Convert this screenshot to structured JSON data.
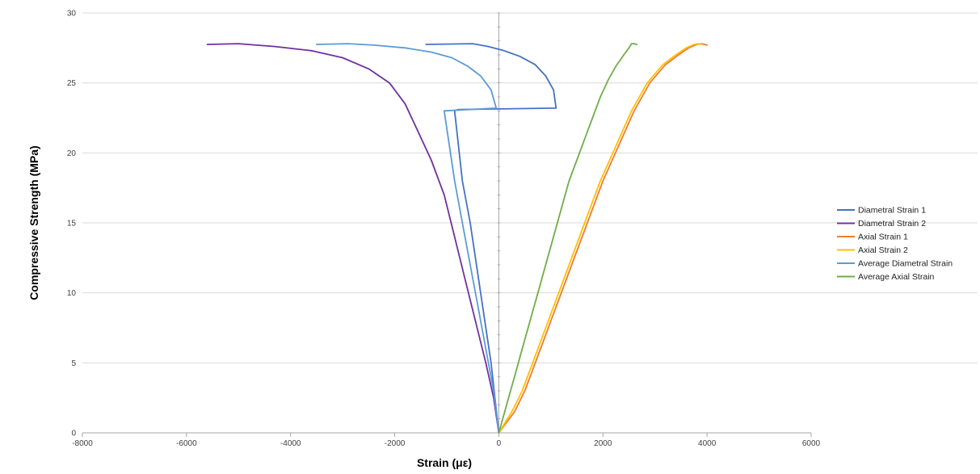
{
  "chart_data": {
    "type": "line",
    "title": "",
    "xlabel": "Strain (με)",
    "ylabel": "Compressive Strength (MPa)",
    "xlim": [
      -8000,
      6000
    ],
    "ylim": [
      0,
      30
    ],
    "x_ticks": [
      -8000,
      -6000,
      -4000,
      -2000,
      0,
      2000,
      4000,
      6000
    ],
    "y_ticks": [
      0,
      5,
      10,
      15,
      20,
      25,
      30
    ],
    "grid": "horizontal",
    "legend_position": "right",
    "series": [
      {
        "name": "Diametral Strain 1",
        "color": "#4472c4",
        "x": [
          0,
          -150,
          -350,
          -550,
          -700,
          -850,
          -780,
          1100,
          1050,
          900,
          700,
          400,
          100,
          -200,
          -500,
          -1400
        ],
        "y": [
          0,
          5,
          10,
          15,
          18,
          23,
          23.1,
          23.2,
          24.5,
          25.5,
          26.3,
          26.9,
          27.3,
          27.6,
          27.8,
          27.75
        ]
      },
      {
        "name": "Diametral Strain 2",
        "color": "#7030a0",
        "x": [
          0,
          -100,
          -250,
          -450,
          -650,
          -850,
          -1050,
          -1300,
          -1550,
          -1800,
          -2100,
          -2500,
          -3000,
          -3600,
          -4300,
          -5000,
          -5600
        ],
        "y": [
          0,
          2.5,
          5,
          8,
          11,
          14,
          17,
          19.5,
          21.5,
          23.5,
          25.0,
          26.0,
          26.8,
          27.3,
          27.6,
          27.8,
          27.75
        ]
      },
      {
        "name": "Axial Strain 1",
        "color": "#ed7d31",
        "x": [
          0,
          300,
          500,
          800,
          1100,
          1400,
          1700,
          2000,
          2300,
          2600,
          2900,
          3200,
          3450,
          3650,
          3800,
          3900,
          3950,
          4000
        ],
        "y": [
          0,
          1.5,
          3,
          6,
          9,
          12,
          15,
          18,
          20.5,
          23,
          25,
          26.3,
          27,
          27.5,
          27.75,
          27.8,
          27.75,
          27.7
        ]
      },
      {
        "name": "Axial Strain 2",
        "color": "#ffc000",
        "x": [
          0,
          250,
          450,
          750,
          1050,
          1350,
          1650,
          1950,
          2250,
          2550,
          2850,
          3150,
          3400,
          3600,
          3750,
          3850,
          3900
        ],
        "y": [
          0,
          1.5,
          3,
          6,
          9,
          12,
          15,
          18,
          20.5,
          23,
          25,
          26.3,
          27,
          27.5,
          27.75,
          27.8,
          27.75
        ]
      },
      {
        "name": "Average Diametral Strain",
        "color": "#5b9bd5",
        "x": [
          0,
          -100,
          -250,
          -400,
          -550,
          -700,
          -850,
          -1050,
          -50,
          -150,
          -350,
          -600,
          -900,
          -1300,
          -1800,
          -2400,
          -2900,
          -3500
        ],
        "y": [
          0,
          3,
          6,
          9,
          12,
          15,
          18,
          23,
          23.2,
          24.5,
          25.5,
          26.2,
          26.8,
          27.2,
          27.5,
          27.7,
          27.8,
          27.75
        ]
      },
      {
        "name": "Average Axial Strain",
        "color": "#70ad47",
        "x": [
          0,
          150,
          300,
          450,
          600,
          750,
          900,
          1050,
          1200,
          1350,
          1500,
          1650,
          1800,
          1950,
          2100,
          2250,
          2400,
          2500,
          2550,
          2600,
          2650
        ],
        "y": [
          0,
          2,
          4,
          6,
          8,
          10,
          12,
          14,
          16,
          18,
          19.5,
          21,
          22.5,
          24,
          25.2,
          26.2,
          27,
          27.5,
          27.8,
          27.8,
          27.75
        ]
      }
    ]
  }
}
